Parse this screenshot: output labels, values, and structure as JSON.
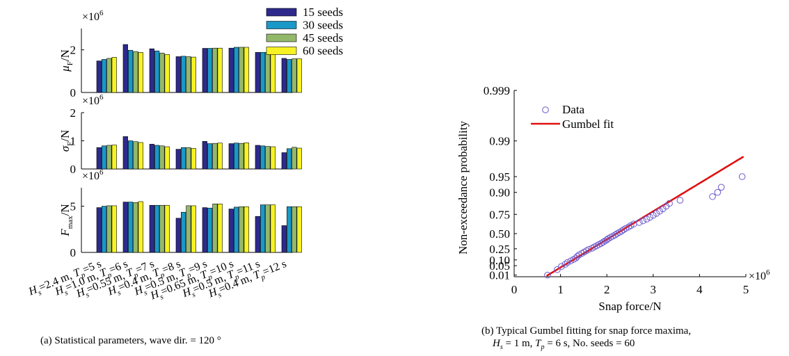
{
  "chart_data": [
    {
      "type": "bar",
      "panel": "a",
      "caption": "(a) Statistical parameters, wave dir. = 120 °",
      "categories": [
        "H_s=2.4 m, T_p=5 s",
        "H_s=1.0 m, T_p=6 s",
        "H_s=0.55 m, T_p=7 s",
        "H_s=0.4 m, T_p=8 s",
        "H_s=0.5 m, T_p=9 s",
        "H_s=0.65 m, T_p=10 s",
        "H_s=0.5 m, T_p=11 s",
        "H_s=0.4 m, T_p=12 s"
      ],
      "category_labels": [
        {
          "h": "H",
          "hs": "s",
          "mid": "=2.4 m, ",
          "t": "T",
          "tp": "p",
          "end": "=5 s"
        },
        {
          "h": "H",
          "hs": "s",
          "mid": "=1.0 m, ",
          "t": "T",
          "tp": "p",
          "end": "=6 s"
        },
        {
          "h": "H",
          "hs": "s",
          "mid": "=0.55 m, ",
          "t": "T",
          "tp": "p",
          "end": "=7 s"
        },
        {
          "h": "H",
          "hs": "s",
          "mid": "=0.4 m, ",
          "t": "T",
          "tp": "p",
          "end": "=8 s"
        },
        {
          "h": "H",
          "hs": "s",
          "mid": "=0.5 m, ",
          "t": "T",
          "tp": "p",
          "end": "=9 s"
        },
        {
          "h": "H",
          "hs": "s",
          "mid": "=0.65 m, ",
          "t": "T",
          "tp": "p",
          "end": "=10 s"
        },
        {
          "h": "H",
          "hs": "s",
          "mid": "=0.5 m, ",
          "t": "T",
          "tp": "p",
          "end": "=11 s"
        },
        {
          "h": "H",
          "hs": "s",
          "mid": "=0.4 m, ",
          "t": "T",
          "tp": "p",
          "end": "=12 s"
        }
      ],
      "legend": [
        "15 seeds",
        "30 seeds",
        "45 seeds",
        "60 seeds"
      ],
      "legend_position": "top-right",
      "series_colors": [
        "#2e2a8c",
        "#1a98c8",
        "#93b86a",
        "#f7f224"
      ],
      "subplots": [
        {
          "name": "mean",
          "ylabel": {
            "sym": "μ",
            "sub": "F",
            "unit": "/N"
          },
          "multiplier": "×10",
          "exponent": "6",
          "ylim": [
            0,
            3
          ],
          "yticks": [
            0,
            2
          ],
          "ytick_labels": [
            "0",
            "2"
          ],
          "series": [
            {
              "name": "15 seeds",
              "values": [
                1.48,
                2.25,
                2.05,
                1.68,
                2.07,
                2.08,
                1.88,
                1.6
              ]
            },
            {
              "name": "30 seeds",
              "values": [
                1.55,
                1.98,
                1.95,
                1.7,
                2.07,
                2.12,
                1.88,
                1.55
              ]
            },
            {
              "name": "45 seeds",
              "values": [
                1.6,
                1.92,
                1.85,
                1.68,
                2.08,
                2.12,
                1.88,
                1.58
              ]
            },
            {
              "name": "60 seeds",
              "values": [
                1.65,
                1.88,
                1.78,
                1.66,
                2.08,
                2.12,
                1.88,
                1.58
              ]
            }
          ]
        },
        {
          "name": "std",
          "ylabel": {
            "sym": "σ",
            "sub": "F",
            "unit": "/N"
          },
          "multiplier": "×10",
          "exponent": "6",
          "ylim": [
            0,
            2
          ],
          "yticks": [
            0,
            1,
            2
          ],
          "ytick_labels": [
            "0",
            "1",
            "2"
          ],
          "series": [
            {
              "name": "15 seeds",
              "values": [
                0.76,
                1.15,
                0.88,
                0.7,
                0.98,
                0.9,
                0.84,
                0.58
              ]
            },
            {
              "name": "30 seeds",
              "values": [
                0.82,
                1.0,
                0.84,
                0.76,
                0.9,
                0.92,
                0.82,
                0.72
              ]
            },
            {
              "name": "45 seeds",
              "values": [
                0.84,
                0.97,
                0.82,
                0.76,
                0.91,
                0.91,
                0.8,
                0.77
              ]
            },
            {
              "name": "60 seeds",
              "values": [
                0.85,
                0.94,
                0.79,
                0.73,
                0.92,
                0.93,
                0.79,
                0.74
              ]
            }
          ]
        },
        {
          "name": "max",
          "ylabel": {
            "sym": "F",
            "sub": "max",
            "unit": "/N"
          },
          "multiplier": "×10",
          "exponent": "6",
          "ylim": [
            0,
            7
          ],
          "yticks": [
            0,
            5
          ],
          "ytick_labels": [
            "0",
            "5"
          ],
          "series": [
            {
              "name": "15 seeds",
              "values": [
                4.85,
                5.45,
                5.1,
                3.7,
                4.85,
                4.7,
                3.9,
                2.9
              ]
            },
            {
              "name": "30 seeds",
              "values": [
                5.0,
                5.45,
                5.1,
                4.35,
                4.8,
                4.9,
                5.15,
                4.95
              ]
            },
            {
              "name": "45 seeds",
              "values": [
                5.05,
                5.4,
                5.1,
                5.05,
                5.25,
                4.95,
                5.15,
                4.95
              ]
            },
            {
              "name": "60 seeds",
              "values": [
                5.05,
                5.5,
                5.1,
                5.05,
                5.25,
                4.95,
                5.15,
                4.95
              ]
            }
          ]
        }
      ]
    },
    {
      "type": "scatter",
      "panel": "b",
      "caption_line1": "(b) Typical Gumbel fitting for snap force maxima,",
      "caption_line2": {
        "h": "H",
        "hs": "s",
        "a": " = 1 m, ",
        "t": "T",
        "tp": "p",
        "b": " = 6 s, No. seeds = 60"
      },
      "xlabel": "Snap force/N",
      "ylabel": "Non-exceedance probability",
      "x_multiplier": "×10",
      "x_exponent": "6",
      "xlim": [
        0,
        5
      ],
      "xticks": [
        0,
        1,
        2,
        3,
        4,
        5
      ],
      "xtick_labels": [
        "0",
        "1",
        "2",
        "3",
        "4",
        "5"
      ],
      "ylim": [
        0.007,
        0.999
      ],
      "yticks": [
        0.01,
        0.05,
        0.1,
        0.25,
        0.5,
        0.75,
        0.9,
        0.95,
        0.99,
        0.999
      ],
      "ytick_labels": [
        "0.01",
        "0.05",
        "0.10",
        "0.25",
        "0.50",
        "0.75",
        "0.90",
        "0.95",
        "0.99",
        "0.999"
      ],
      "legend": [
        "Data",
        "Gumbel fit"
      ],
      "legend_position": "top-left",
      "marker_color": "#6a5acd",
      "line_color": "#e01010",
      "gumbel_fit": {
        "mu": 1.92,
        "beta": 0.78,
        "x_start": 0.7,
        "x_end": 4.95
      },
      "data_points": [
        [
          0.72,
          0.01
        ],
        [
          0.93,
          0.028
        ],
        [
          1.02,
          0.045
        ],
        [
          1.1,
          0.06
        ],
        [
          1.15,
          0.075
        ],
        [
          1.22,
          0.09
        ],
        [
          1.28,
          0.105
        ],
        [
          1.33,
          0.12
        ],
        [
          1.36,
          0.14
        ],
        [
          1.4,
          0.16
        ],
        [
          1.46,
          0.18
        ],
        [
          1.51,
          0.2
        ],
        [
          1.56,
          0.22
        ],
        [
          1.61,
          0.24
        ],
        [
          1.68,
          0.26
        ],
        [
          1.73,
          0.28
        ],
        [
          1.78,
          0.3
        ],
        [
          1.83,
          0.32
        ],
        [
          1.88,
          0.34
        ],
        [
          1.92,
          0.36
        ],
        [
          1.96,
          0.38
        ],
        [
          2.0,
          0.4
        ],
        [
          2.03,
          0.42
        ],
        [
          2.08,
          0.44
        ],
        [
          2.13,
          0.46
        ],
        [
          2.18,
          0.48
        ],
        [
          2.22,
          0.5
        ],
        [
          2.27,
          0.52
        ],
        [
          2.32,
          0.54
        ],
        [
          2.36,
          0.56
        ],
        [
          2.41,
          0.58
        ],
        [
          2.47,
          0.6
        ],
        [
          2.52,
          0.62
        ],
        [
          2.58,
          0.64
        ],
        [
          2.7,
          0.66
        ],
        [
          2.78,
          0.68
        ],
        [
          2.86,
          0.7
        ],
        [
          2.93,
          0.72
        ],
        [
          3.0,
          0.74
        ],
        [
          3.07,
          0.76
        ],
        [
          3.14,
          0.78
        ],
        [
          3.21,
          0.8
        ],
        [
          3.28,
          0.82
        ],
        [
          3.35,
          0.84
        ],
        [
          3.58,
          0.86
        ],
        [
          4.28,
          0.88
        ],
        [
          4.39,
          0.9
        ],
        [
          4.47,
          0.92
        ],
        [
          4.92,
          0.95
        ]
      ]
    }
  ]
}
